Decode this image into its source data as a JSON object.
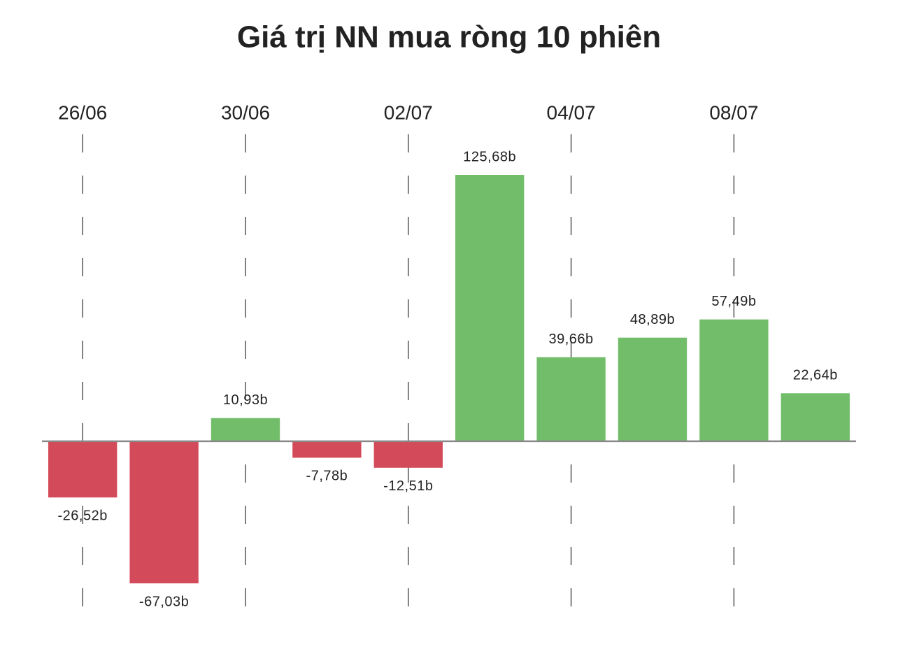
{
  "chart_data": {
    "type": "bar",
    "title": "Giá trị NN mua ròng 10 phiên",
    "categories": [
      "26/06",
      null,
      "30/06",
      null,
      "02/07",
      null,
      "04/07",
      null,
      "08/07",
      null
    ],
    "values": [
      -26.52,
      -67.03,
      10.93,
      -7.78,
      -12.51,
      125.68,
      39.66,
      48.89,
      57.49,
      22.64
    ],
    "value_labels": [
      "-26,52b",
      "-67,03b",
      "10,93b",
      "-7,78b",
      "-12,51b",
      "125,68b",
      "39,66b",
      "48,89b",
      "57,49b",
      "22,64b"
    ],
    "positive_color": "#72bd6a",
    "negative_color": "#d34b5a",
    "grid": true
  }
}
